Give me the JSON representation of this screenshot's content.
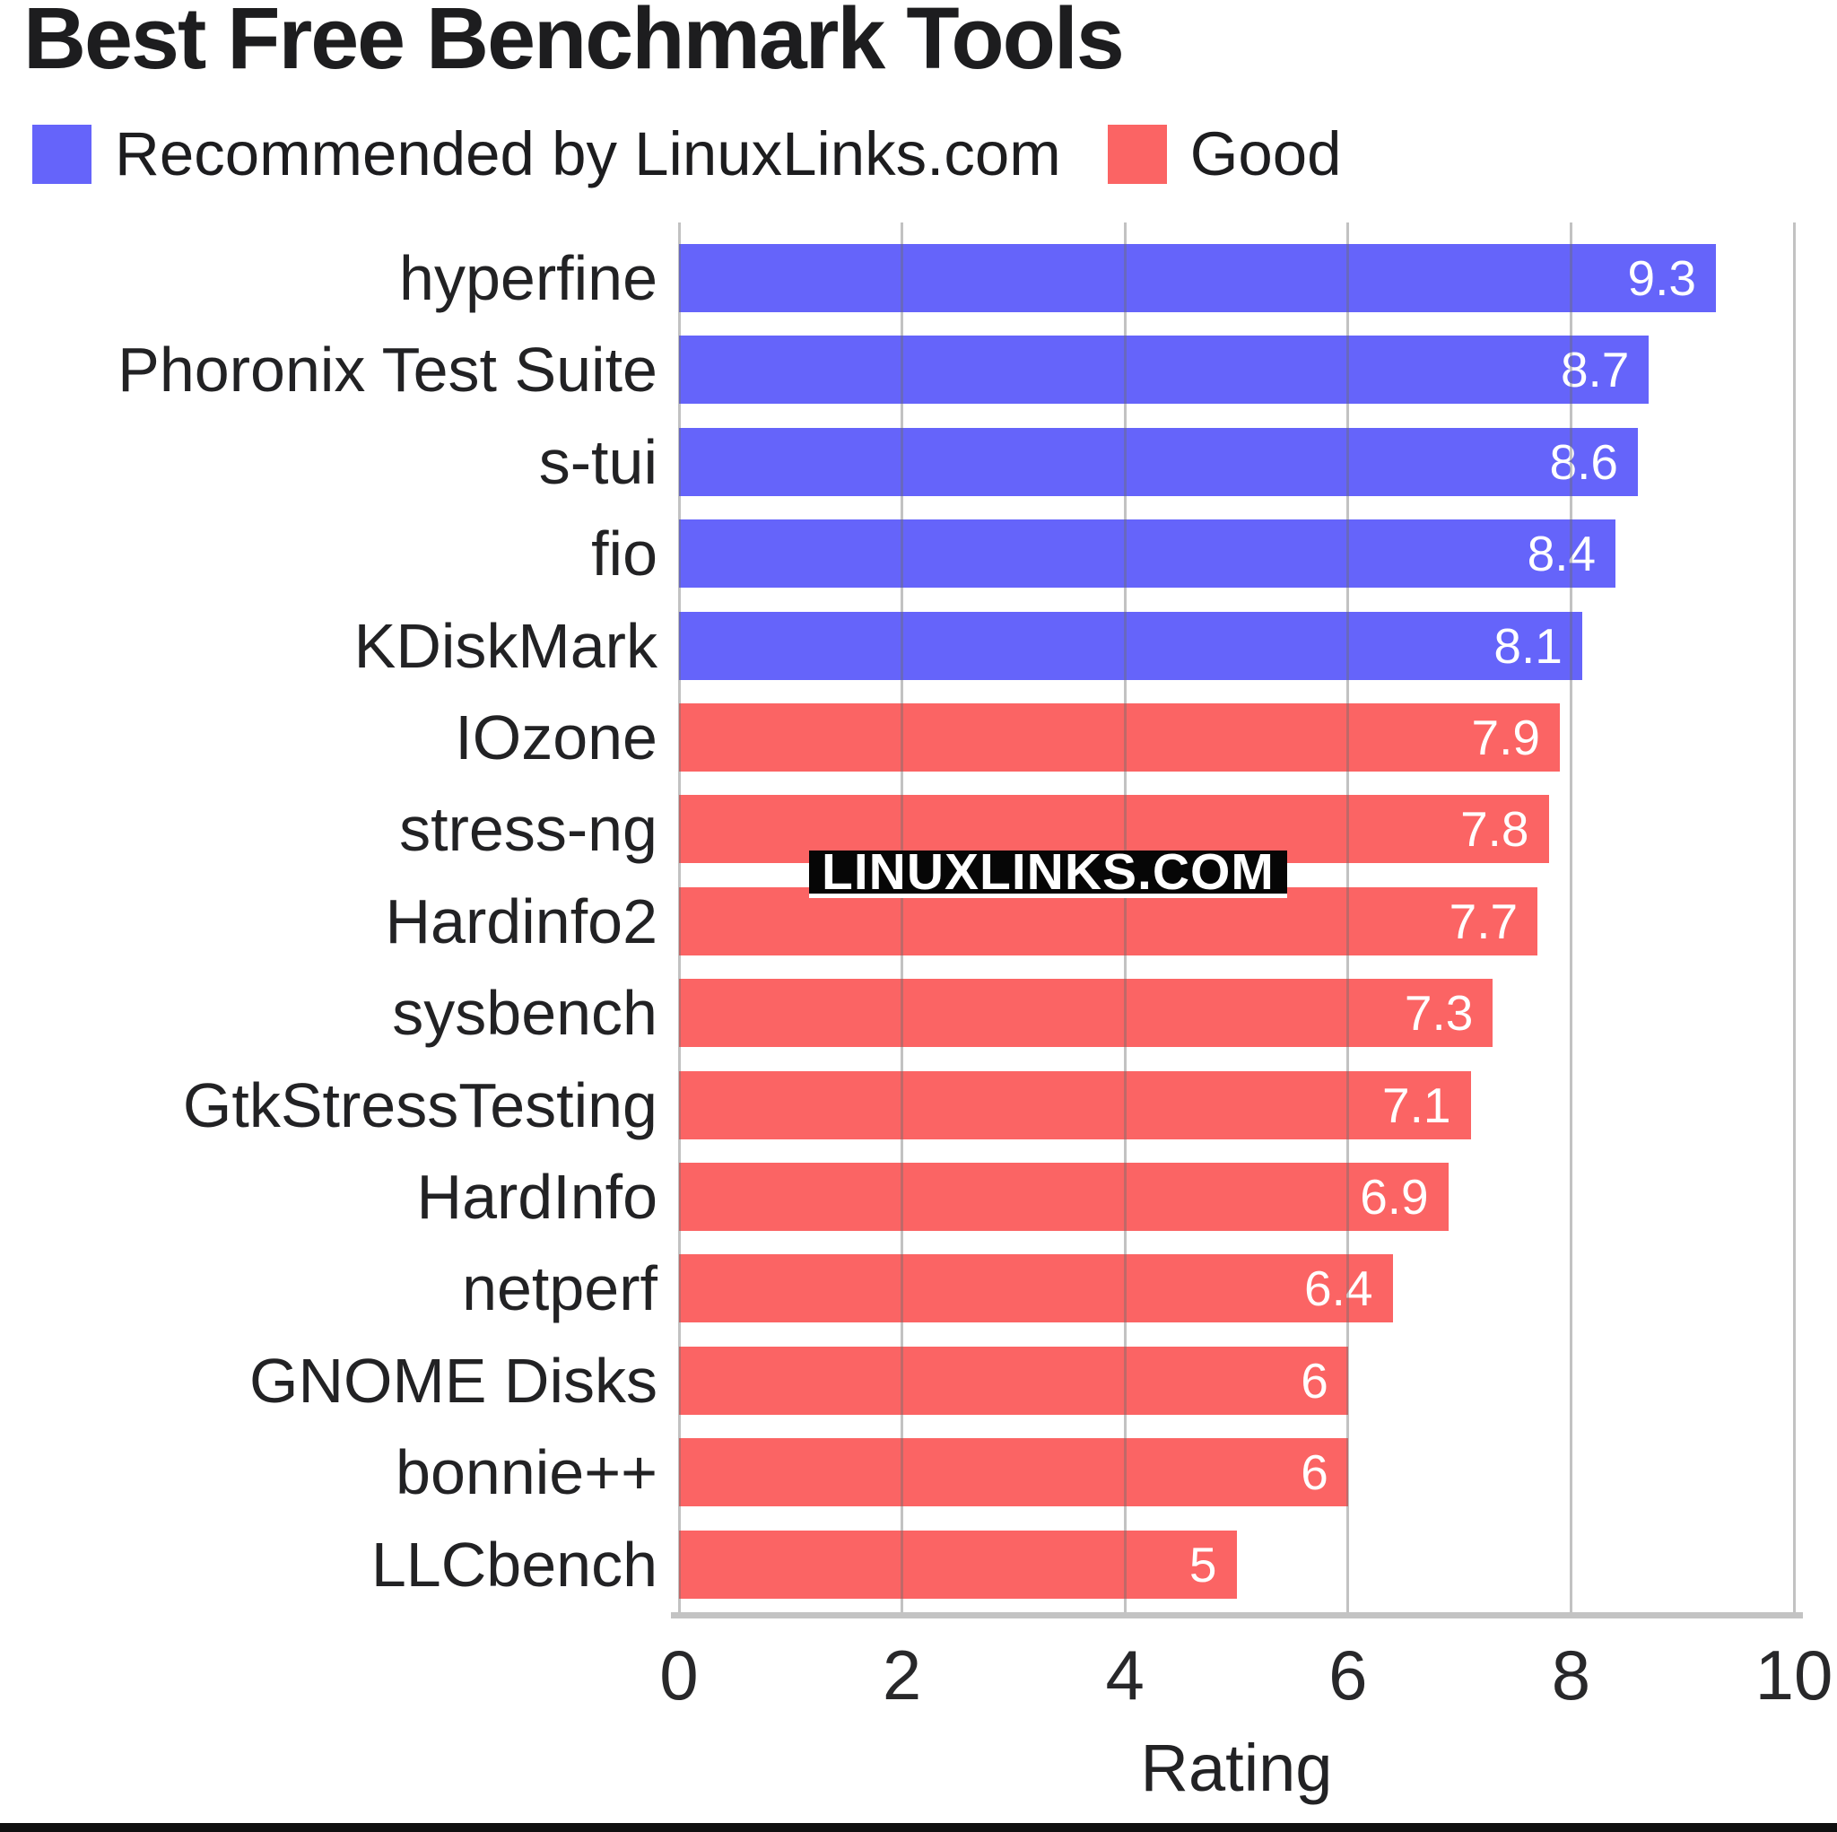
{
  "title": "Best Free Benchmark Tools",
  "watermark": "LINUXLINKS.COM",
  "legend": {
    "items": [
      {
        "label": "Recommended by LinuxLinks.com",
        "color": "#6564FA"
      },
      {
        "label": "Good",
        "color": "#FB6464"
      }
    ]
  },
  "chart_data": {
    "type": "bar",
    "orientation": "horizontal",
    "title": "Best Free Benchmark Tools",
    "xlabel": "Rating",
    "xlim": [
      0,
      10
    ],
    "xticks": [
      "0",
      "2",
      "4",
      "6",
      "8",
      "10"
    ],
    "grid": true,
    "legend_position": "top-left",
    "series": [
      {
        "name": "Recommended by LinuxLinks.com",
        "color": "#6564FA"
      },
      {
        "name": "Good",
        "color": "#FB6464"
      }
    ],
    "bars": [
      {
        "label": "hyperfine",
        "value": 9.3,
        "display": "9.3",
        "series": "Recommended by LinuxLinks.com"
      },
      {
        "label": "Phoronix Test Suite",
        "value": 8.7,
        "display": "8.7",
        "series": "Recommended by LinuxLinks.com"
      },
      {
        "label": "s-tui",
        "value": 8.6,
        "display": "8.6",
        "series": "Recommended by LinuxLinks.com"
      },
      {
        "label": "fio",
        "value": 8.4,
        "display": "8.4",
        "series": "Recommended by LinuxLinks.com"
      },
      {
        "label": "KDiskMark",
        "value": 8.1,
        "display": "8.1",
        "series": "Recommended by LinuxLinks.com"
      },
      {
        "label": "IOzone",
        "value": 7.9,
        "display": "7.9",
        "series": "Good"
      },
      {
        "label": "stress-ng",
        "value": 7.8,
        "display": "7.8",
        "series": "Good"
      },
      {
        "label": "Hardinfo2",
        "value": 7.7,
        "display": "7.7",
        "series": "Good"
      },
      {
        "label": "sysbench",
        "value": 7.3,
        "display": "7.3",
        "series": "Good"
      },
      {
        "label": "GtkStressTesting",
        "value": 7.1,
        "display": "7.1",
        "series": "Good"
      },
      {
        "label": "HardInfo",
        "value": 6.9,
        "display": "6.9",
        "series": "Good"
      },
      {
        "label": "netperf",
        "value": 6.4,
        "display": "6.4",
        "series": "Good"
      },
      {
        "label": "GNOME Disks",
        "value": 6,
        "display": "6",
        "series": "Good"
      },
      {
        "label": "bonnie++",
        "value": 6,
        "display": "6",
        "series": "Good"
      },
      {
        "label": "LLCbench",
        "value": 5,
        "display": "5",
        "series": "Good"
      }
    ]
  }
}
